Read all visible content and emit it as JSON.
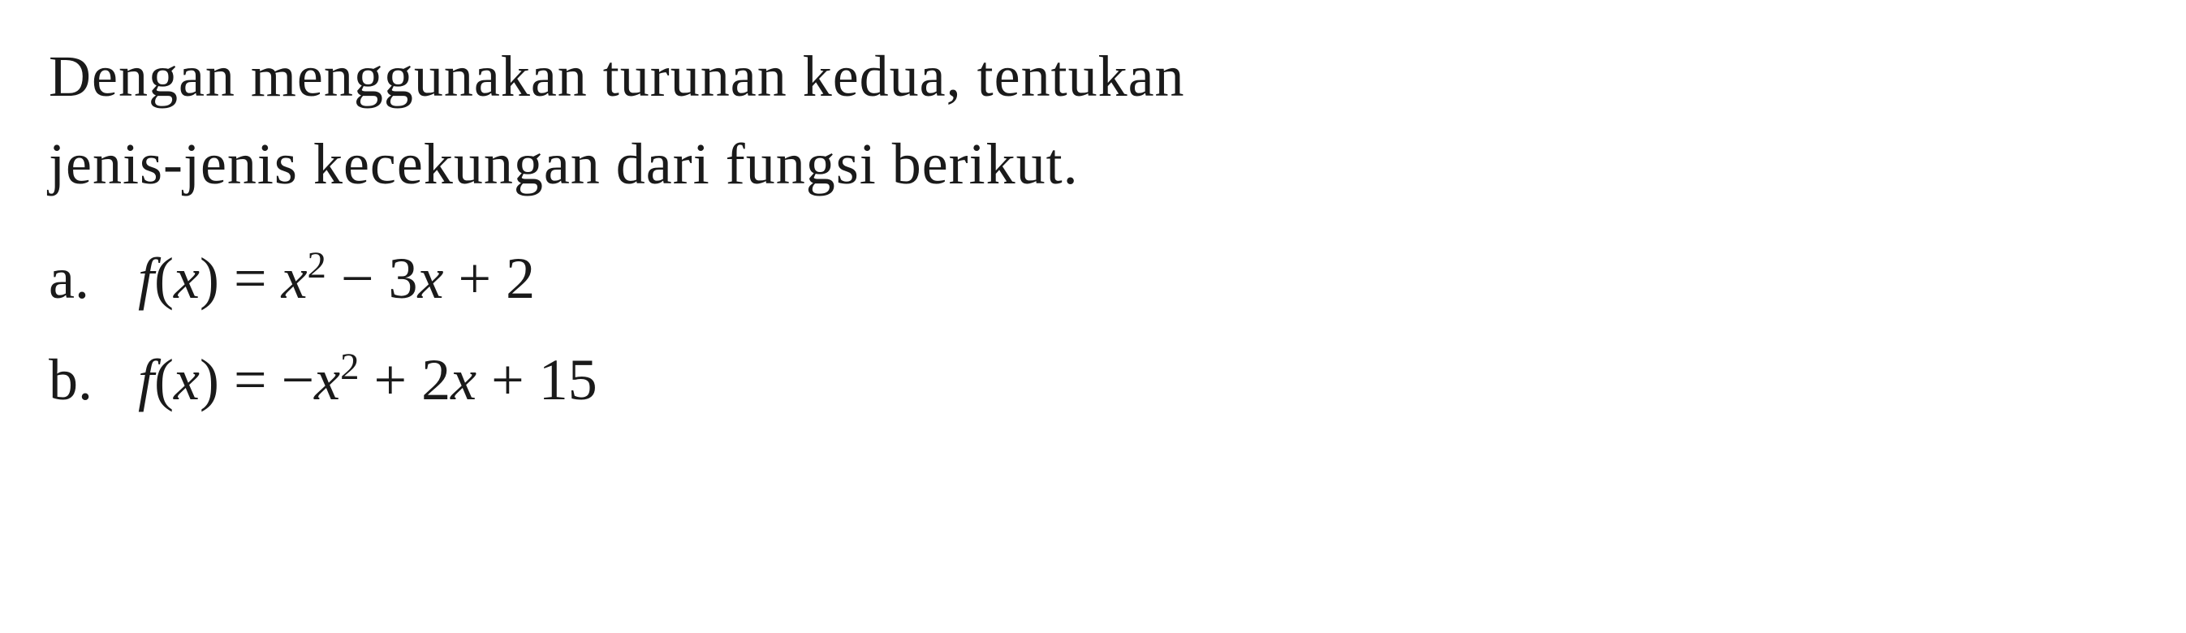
{
  "problem": {
    "instruction_line1": "Dengan menggunakan turunan kedua, tentukan",
    "instruction_line2": "jenis-jenis kecekungan dari fungsi berikut.",
    "items": [
      {
        "label": "a.",
        "func_name": "f",
        "func_var": "x",
        "equals": " = ",
        "terms": [
          {
            "var": "x",
            "exp": "2",
            "pre": ""
          },
          {
            "text": " − 3",
            "var": "x",
            "post": " + 2"
          }
        ],
        "plain": "f(x) = x² − 3x + 2"
      },
      {
        "label": "b.",
        "func_name": "f",
        "func_var": "x",
        "equals": " = ",
        "terms": [
          {
            "pre": "−",
            "var": "x",
            "exp": "2"
          },
          {
            "text": " + 2",
            "var": "x",
            "post": " + 15"
          }
        ],
        "plain": "f(x) = −x² + 2x + 15"
      }
    ]
  },
  "style": {
    "background_color": "#ffffff",
    "text_color": "#1a1a1a",
    "font_size_pt": 54,
    "font_family": "Georgia, Times New Roman, serif"
  }
}
